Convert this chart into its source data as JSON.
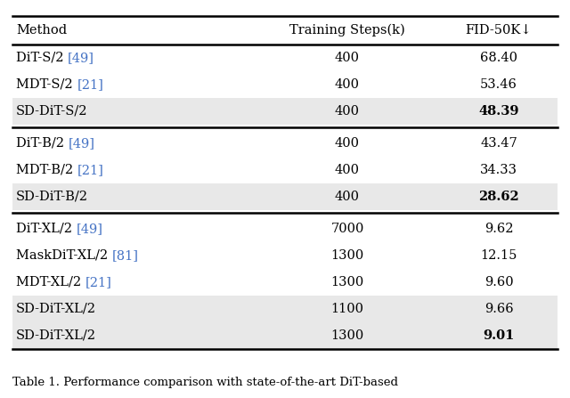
{
  "title": "Table 1. Performance comparison with state-of-the-art DiT-based",
  "header": [
    "Method",
    "Training Steps(k)",
    "FID-50K↓"
  ],
  "rows": [
    {
      "steps": "400",
      "fid": "68.40",
      "highlight": false,
      "bold_fid": false,
      "parts": [
        {
          "text": "DiT-S/2 ",
          "bold": false,
          "blue": false
        },
        {
          "text": "[49]",
          "bold": false,
          "blue": true
        }
      ]
    },
    {
      "steps": "400",
      "fid": "53.46",
      "highlight": false,
      "bold_fid": false,
      "parts": [
        {
          "text": "MDT-S/2 ",
          "bold": false,
          "blue": false
        },
        {
          "text": "[21]",
          "bold": false,
          "blue": true
        }
      ]
    },
    {
      "steps": "400",
      "fid": "48.39",
      "highlight": true,
      "bold_fid": true,
      "parts": [
        {
          "text": "SD-DiT-S/2",
          "bold": false,
          "blue": false
        }
      ]
    },
    {
      "steps": "400",
      "fid": "43.47",
      "highlight": false,
      "bold_fid": false,
      "parts": [
        {
          "text": "DiT-B/2 ",
          "bold": false,
          "blue": false
        },
        {
          "text": "[49]",
          "bold": false,
          "blue": true
        }
      ]
    },
    {
      "steps": "400",
      "fid": "34.33",
      "highlight": false,
      "bold_fid": false,
      "parts": [
        {
          "text": "MDT-B/2 ",
          "bold": false,
          "blue": false
        },
        {
          "text": "[21]",
          "bold": false,
          "blue": true
        }
      ]
    },
    {
      "steps": "400",
      "fid": "28.62",
      "highlight": true,
      "bold_fid": true,
      "parts": [
        {
          "text": "SD-DiT-B/2",
          "bold": false,
          "blue": false
        }
      ]
    },
    {
      "steps": "7000",
      "fid": "9.62",
      "highlight": false,
      "bold_fid": false,
      "parts": [
        {
          "text": "DiT-XL/2 ",
          "bold": false,
          "blue": false
        },
        {
          "text": "[49]",
          "bold": false,
          "blue": true
        }
      ]
    },
    {
      "steps": "1300",
      "fid": "12.15",
      "highlight": false,
      "bold_fid": false,
      "parts": [
        {
          "text": "MaskDiT-XL/2 ",
          "bold": false,
          "blue": false
        },
        {
          "text": "[81]",
          "bold": false,
          "blue": true
        }
      ]
    },
    {
      "steps": "1300",
      "fid": "9.60",
      "highlight": false,
      "bold_fid": false,
      "parts": [
        {
          "text": "MDT-XL/2 ",
          "bold": false,
          "blue": false
        },
        {
          "text": "[21]",
          "bold": false,
          "blue": true
        }
      ]
    },
    {
      "steps": "1100",
      "fid": "9.66",
      "highlight": true,
      "bold_fid": false,
      "parts": [
        {
          "text": "SD-DiT-XL/2",
          "bold": false,
          "blue": false
        }
      ]
    },
    {
      "steps": "1300",
      "fid": "9.01",
      "highlight": true,
      "bold_fid": true,
      "parts": [
        {
          "text": "SD-DiT-XL/2",
          "bold": false,
          "blue": false
        }
      ]
    }
  ],
  "group_separators_after": [
    2,
    5
  ],
  "background_color": "#ffffff",
  "highlight_color": "#e8e8e8",
  "ref_link_color": "#4472c4",
  "text_color": "#000000",
  "header_fontsize": 10.5,
  "cell_fontsize": 10.5,
  "caption_fontsize": 9.5
}
